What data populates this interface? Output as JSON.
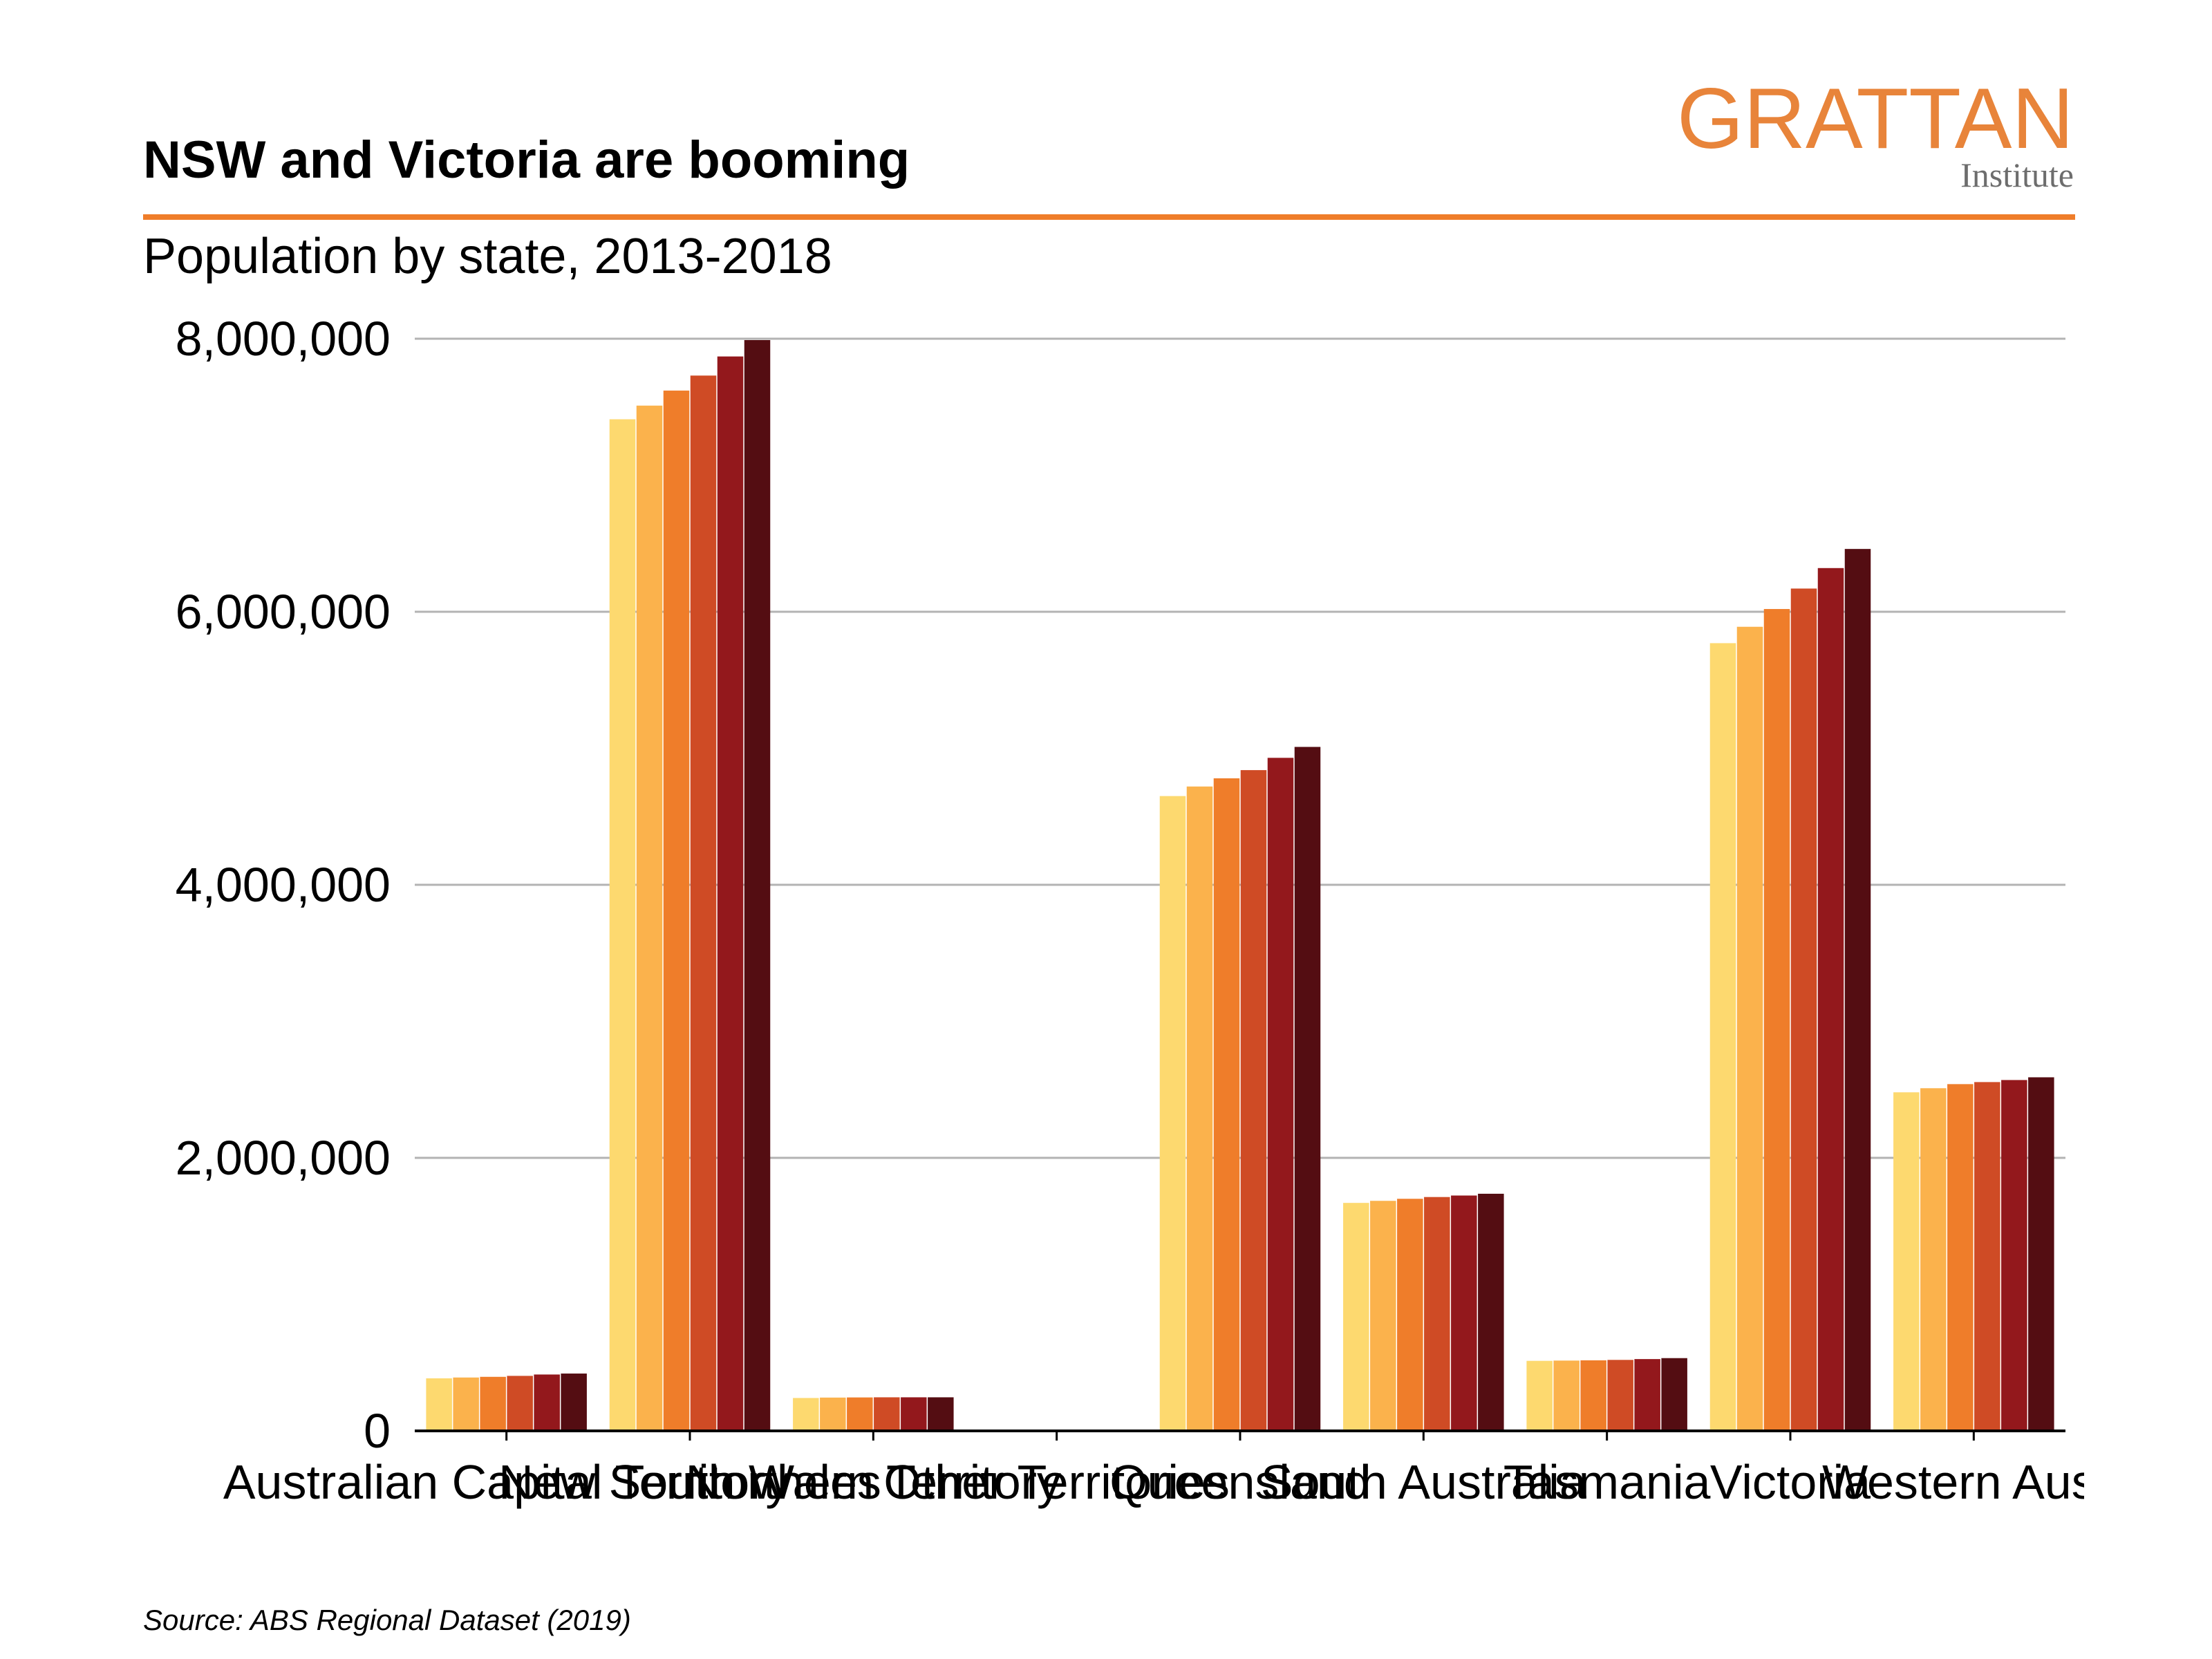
{
  "title": "NSW and Victoria are booming",
  "subtitle": "Population by state, 2013-2018",
  "logo": {
    "main": "GRATTAN",
    "sub": "Institute"
  },
  "source": "Source: ABS Regional Dataset (2019)",
  "colors": [
    "#fdd96f",
    "#fbb24c",
    "#ef7d2a",
    "#cf4b25",
    "#93181c",
    "#540d12"
  ],
  "chart_data": {
    "type": "bar",
    "categories": [
      "Australian Capital Territory",
      "New South Wales",
      "Northern Territory",
      "Other Territories",
      "Queensland",
      "South Australia",
      "Tasmania",
      "Victoria",
      "Western Australia"
    ],
    "series": [
      {
        "values": [
          385000,
          7410000,
          241000,
          0,
          4650000,
          1670000,
          513000,
          5770000,
          2480000
        ]
      },
      {
        "values": [
          391000,
          7510000,
          244000,
          0,
          4720000,
          1685000,
          515000,
          5890000,
          2510000
        ]
      },
      {
        "values": [
          396000,
          7620000,
          245000,
          0,
          4780000,
          1700000,
          517000,
          6020000,
          2540000
        ]
      },
      {
        "values": [
          403000,
          7730000,
          246000,
          0,
          4840000,
          1713000,
          520000,
          6170000,
          2555000
        ]
      },
      {
        "values": [
          413000,
          7870000,
          246000,
          0,
          4930000,
          1724000,
          526000,
          6320000,
          2570000
        ]
      },
      {
        "values": [
          420000,
          7990000,
          246000,
          0,
          5010000,
          1737000,
          533000,
          6460000,
          2590000
        ]
      }
    ],
    "ylim": [
      0,
      8000000
    ],
    "yticks": [
      0,
      2000000,
      4000000,
      6000000,
      8000000
    ],
    "ytick_labels": [
      "0",
      "2,000,000",
      "4,000,000",
      "6,000,000",
      "8,000,000"
    ],
    "xtick_labels": [
      "Australian Capital Territory",
      "New South Wales",
      "Northern Territory",
      "Other Territories",
      "Queensland",
      "South Australia",
      "Tasmania",
      "Victoria",
      "Western Austr"
    ],
    "grid": true
  }
}
